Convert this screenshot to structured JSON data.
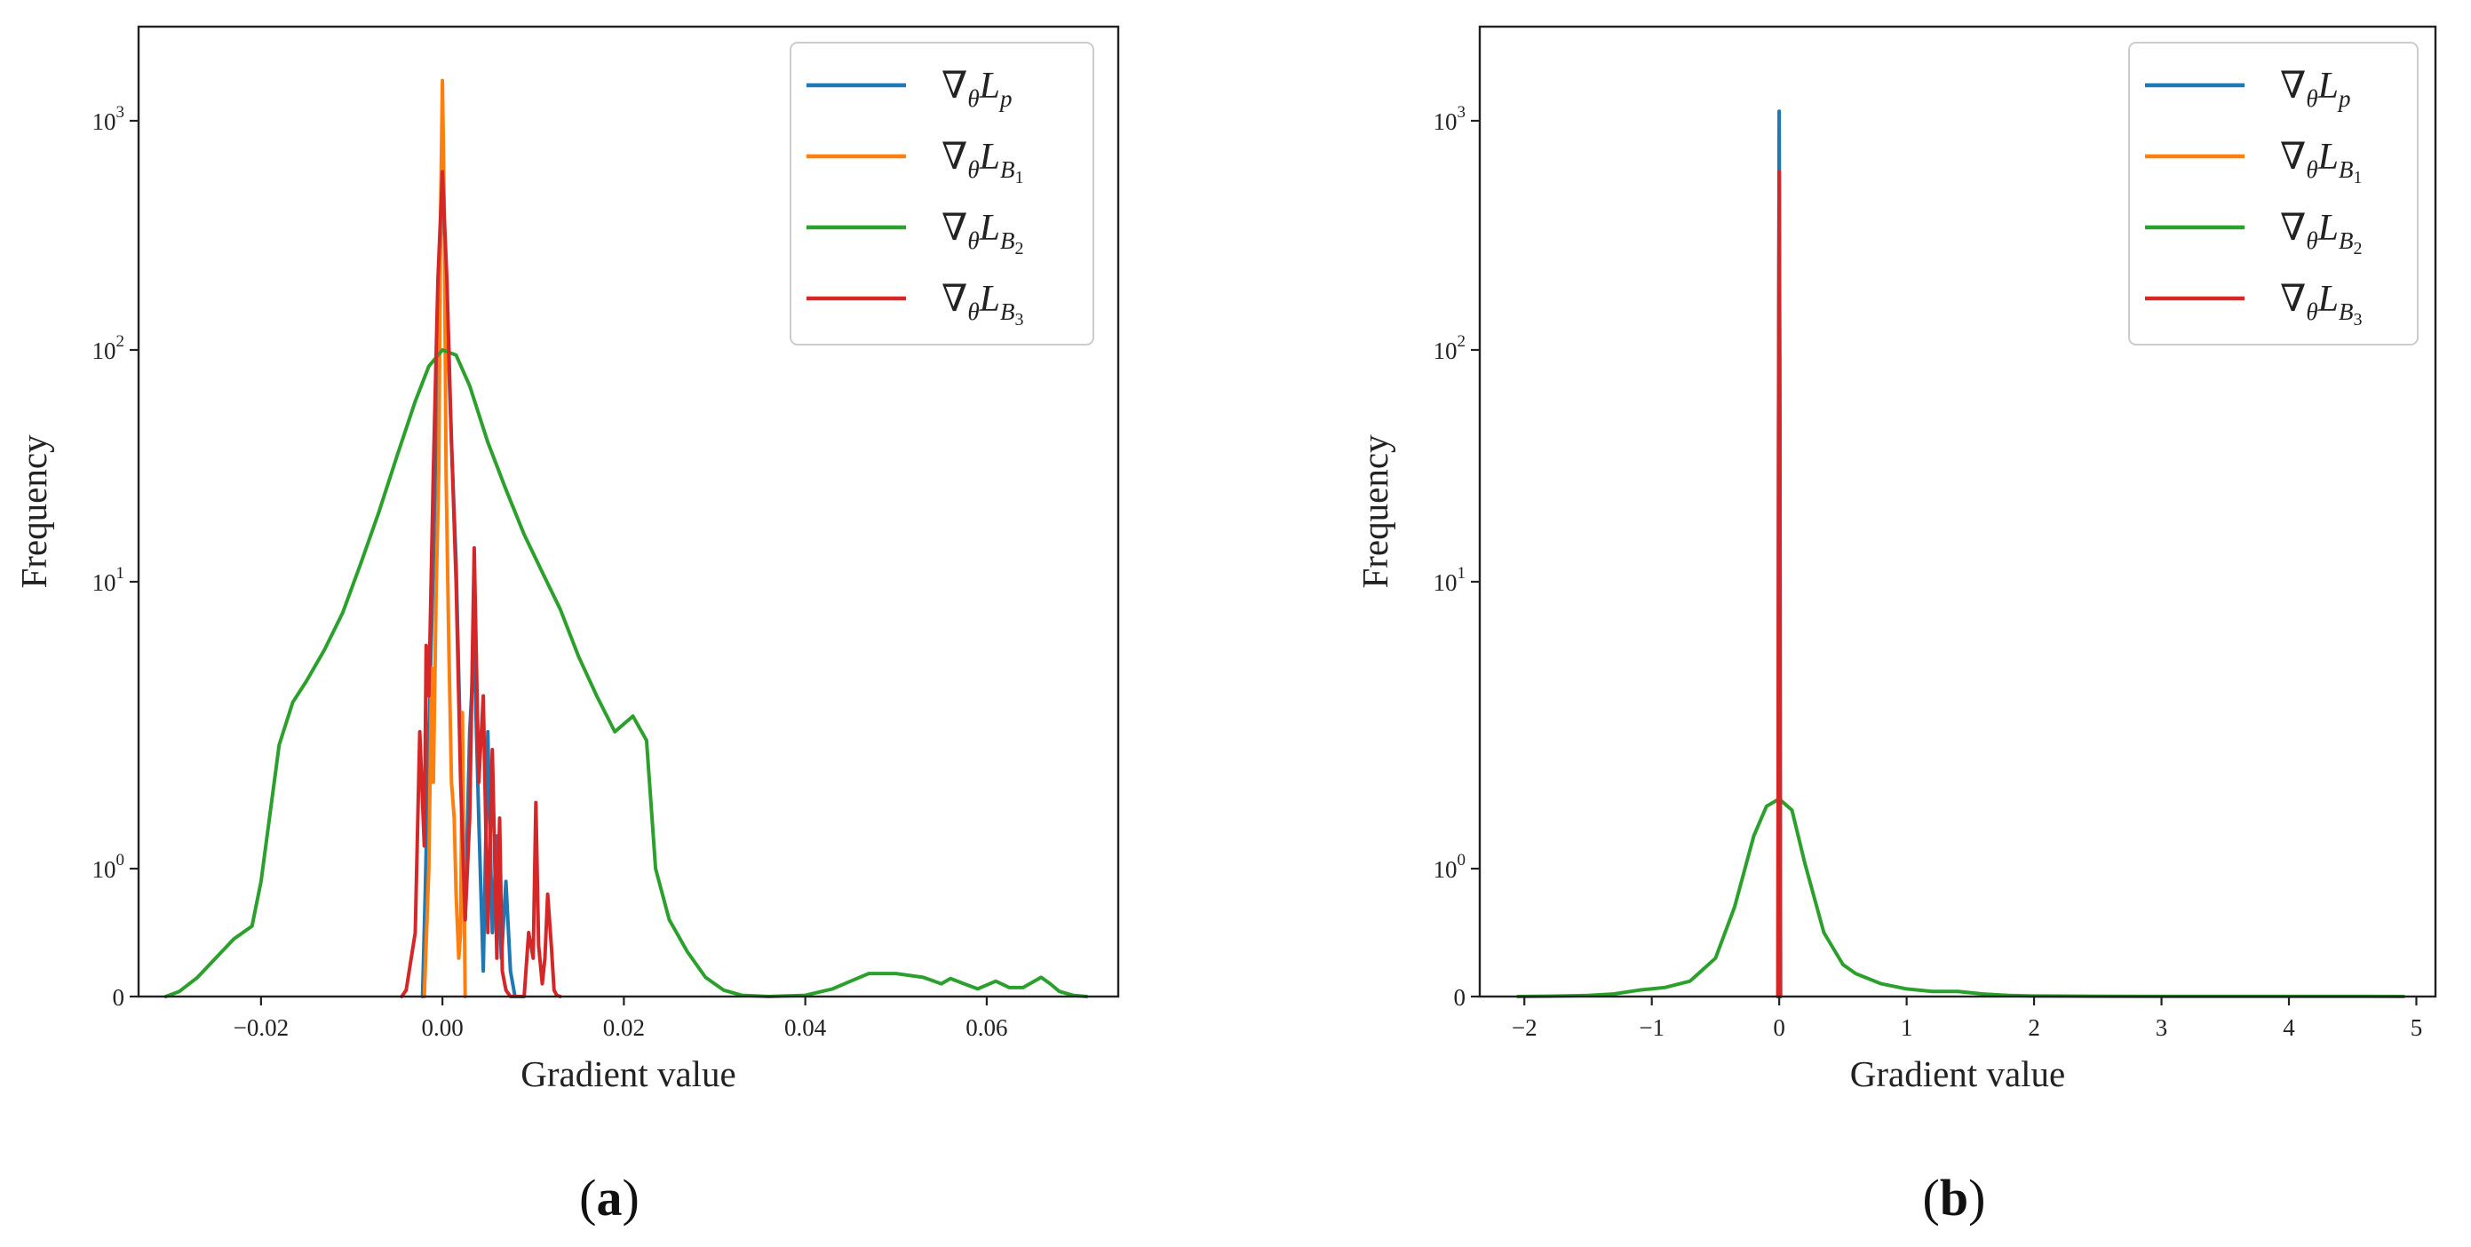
{
  "figure_labels": [
    "(a)",
    "(b)"
  ],
  "colors": {
    "blue": "#1f77b4",
    "orange": "#ff7f0e",
    "green": "#2ca02c",
    "red": "#d62728"
  },
  "legend_items": [
    {
      "base": "∇",
      "sub1": "θ",
      "main": "L",
      "sub2": "p",
      "sub3": "",
      "color_key": "blue"
    },
    {
      "base": "∇",
      "sub1": "θ",
      "main": "L",
      "sub2": "B",
      "sub3": "1",
      "color_key": "orange"
    },
    {
      "base": "∇",
      "sub1": "θ",
      "main": "L",
      "sub2": "B",
      "sub3": "2",
      "color_key": "green"
    },
    {
      "base": "∇",
      "sub1": "θ",
      "main": "L",
      "sub2": "B",
      "sub3": "3",
      "color_key": "red"
    }
  ],
  "chart_data": [
    {
      "type": "line",
      "title": "",
      "subfigure": "(a)",
      "xlabel": "Gradient value",
      "ylabel": "Frequency",
      "xlim": [
        -0.0335,
        0.0745
      ],
      "yscale": "symlog",
      "ylim": [
        0,
        2300
      ],
      "xticks": [
        -0.02,
        0.0,
        0.02,
        0.04,
        0.06
      ],
      "xtick_labels": [
        "−0.02",
        "0.00",
        "0.02",
        "0.04",
        "0.06"
      ],
      "yticks": [
        0,
        1,
        10,
        100,
        1000
      ],
      "ytick_labels": [
        {
          "base": "0",
          "exp": ""
        },
        {
          "base": "10",
          "exp": "0"
        },
        {
          "base": "10",
          "exp": "1"
        },
        {
          "base": "10",
          "exp": "2"
        },
        {
          "base": "10",
          "exp": "3"
        }
      ],
      "series": [
        {
          "name": "∇θLp",
          "color_key": "blue",
          "x": [
            -0.0022,
            -0.0019,
            -0.0015,
            -0.001,
            -0.0005,
            0.0,
            0.0005,
            0.001,
            0.0015,
            0.002,
            0.0025,
            0.003,
            0.0035,
            0.004,
            0.0045,
            0.005,
            0.0055,
            0.006,
            0.0065,
            0.007,
            0.0075,
            0.008
          ],
          "y": [
            0,
            0.8,
            3,
            12,
            100,
            600,
            150,
            40,
            12,
            2.5,
            0.6,
            3,
            6,
            1.5,
            0.2,
            3,
            0.5,
            1.3,
            0.3,
            0.9,
            0.2,
            0
          ]
        },
        {
          "name": "∇θLB1",
          "color_key": "orange",
          "x": [
            -0.002,
            -0.0015,
            -0.0012,
            -0.001,
            -0.0007,
            -0.0004,
            -0.0002,
            0.0,
            0.0002,
            0.0004,
            0.0007,
            0.001,
            0.0013,
            0.0015,
            0.0018,
            0.002,
            0.0022,
            0.0025
          ],
          "y": [
            0,
            1,
            5,
            2,
            9,
            30,
            400,
            1500,
            400,
            30,
            6,
            2,
            1.5,
            0.8,
            0.3,
            0.5,
            3.5,
            0
          ]
        },
        {
          "name": "∇θLB2",
          "color_key": "green",
          "x": [
            -0.0305,
            -0.029,
            -0.027,
            -0.025,
            -0.023,
            -0.021,
            -0.02,
            -0.018,
            -0.0165,
            -0.015,
            -0.013,
            -0.011,
            -0.009,
            -0.007,
            -0.005,
            -0.003,
            -0.0015,
            0.0,
            0.0015,
            0.003,
            0.005,
            0.007,
            0.009,
            0.011,
            0.013,
            0.015,
            0.017,
            0.019,
            0.021,
            0.0225,
            0.0235,
            0.025,
            0.027,
            0.029,
            0.031,
            0.033,
            0.036,
            0.04,
            0.043,
            0.045,
            0.047,
            0.05,
            0.053,
            0.055,
            0.056,
            0.0575,
            0.059,
            0.061,
            0.0625,
            0.064,
            0.066,
            0.067,
            0.068,
            0.0695,
            0.071
          ],
          "y": [
            0,
            0.04,
            0.15,
            0.3,
            0.45,
            0.55,
            0.9,
            2.7,
            3.8,
            4.5,
            5.8,
            7.8,
            12,
            20,
            35,
            60,
            85,
            100,
            95,
            70,
            40,
            25,
            16,
            11,
            8,
            5.5,
            4,
            3,
            3.4,
            2.8,
            1.0,
            0.6,
            0.35,
            0.15,
            0.05,
            0.01,
            0,
            0.01,
            0.06,
            0.12,
            0.18,
            0.18,
            0.15,
            0.1,
            0.14,
            0.1,
            0.06,
            0.12,
            0.07,
            0.07,
            0.15,
            0.1,
            0.04,
            0.01,
            0
          ]
        },
        {
          "name": "∇θLB3",
          "color_key": "red",
          "x": [
            -0.0045,
            -0.004,
            -0.003,
            -0.0025,
            -0.002,
            -0.0018,
            -0.0015,
            -0.001,
            -0.0005,
            0.0,
            0.0005,
            0.001,
            0.0015,
            0.002,
            0.0025,
            0.003,
            0.0035,
            0.004,
            0.0045,
            0.005,
            0.0055,
            0.006,
            0.0063,
            0.0066,
            0.007,
            0.0075,
            0.009,
            0.0095,
            0.01,
            0.0103,
            0.0106,
            0.011,
            0.0113,
            0.0116,
            0.012,
            0.0123,
            0.0126,
            0.013
          ],
          "y": [
            0,
            0.05,
            0.5,
            3,
            1.2,
            6,
            4,
            30,
            200,
            600,
            200,
            40,
            10,
            2,
            0.6,
            1.5,
            14,
            2,
            4,
            0.5,
            2.6,
            0.3,
            1.5,
            0.2,
            0.05,
            0,
            0,
            0.5,
            0.3,
            1.7,
            0.4,
            0.1,
            0.3,
            0.8,
            0.4,
            0.05,
            0.01,
            0
          ]
        }
      ]
    },
    {
      "type": "line",
      "title": "",
      "subfigure": "(b)",
      "xlabel": "Gradient value",
      "ylabel": "Frequency",
      "xlim": [
        -2.35,
        5.15
      ],
      "yscale": "symlog",
      "ylim": [
        0,
        2200
      ],
      "xticks": [
        -2,
        -1,
        0,
        1,
        2,
        3,
        4,
        5
      ],
      "xtick_labels": [
        "−2",
        "−1",
        "0",
        "1",
        "2",
        "3",
        "4",
        "5"
      ],
      "yticks": [
        0,
        1,
        10,
        100,
        1000
      ],
      "ytick_labels": [
        {
          "base": "0",
          "exp": ""
        },
        {
          "base": "10",
          "exp": "0"
        },
        {
          "base": "10",
          "exp": "1"
        },
        {
          "base": "10",
          "exp": "2"
        },
        {
          "base": "10",
          "exp": "3"
        }
      ],
      "series": [
        {
          "name": "∇θLp",
          "color_key": "blue",
          "x": [
            -0.01,
            -0.005,
            0.0,
            0.005,
            0.01
          ],
          "y": [
            0,
            50,
            1100,
            50,
            0
          ]
        },
        {
          "name": "∇θLB1",
          "color_key": "orange",
          "x": [
            -0.008,
            -0.004,
            0.0,
            0.004,
            0.008
          ],
          "y": [
            0,
            30,
            500,
            30,
            0
          ]
        },
        {
          "name": "∇θLB2",
          "color_key": "green",
          "x": [
            -2.05,
            -1.8,
            -1.5,
            -1.3,
            -1.1,
            -0.9,
            -0.7,
            -0.5,
            -0.35,
            -0.2,
            -0.1,
            0.0,
            0.1,
            0.2,
            0.35,
            0.5,
            0.6,
            0.8,
            1.0,
            1.2,
            1.4,
            1.6,
            1.8,
            2.0,
            2.5,
            3.0,
            3.5,
            4.0,
            4.5,
            4.9
          ],
          "y": [
            0,
            0.003,
            0.008,
            0.02,
            0.05,
            0.07,
            0.12,
            0.3,
            0.7,
            1.3,
            1.65,
            1.75,
            1.6,
            1.05,
            0.5,
            0.25,
            0.18,
            0.1,
            0.06,
            0.04,
            0.04,
            0.02,
            0.008,
            0.004,
            0.002,
            0.001,
            0.001,
            0.001,
            0.0005,
            0
          ]
        },
        {
          "name": "∇θLB3",
          "color_key": "red",
          "x": [
            -0.01,
            -0.005,
            0.0,
            0.005,
            0.01
          ],
          "y": [
            0,
            40,
            600,
            40,
            0
          ]
        }
      ]
    }
  ]
}
